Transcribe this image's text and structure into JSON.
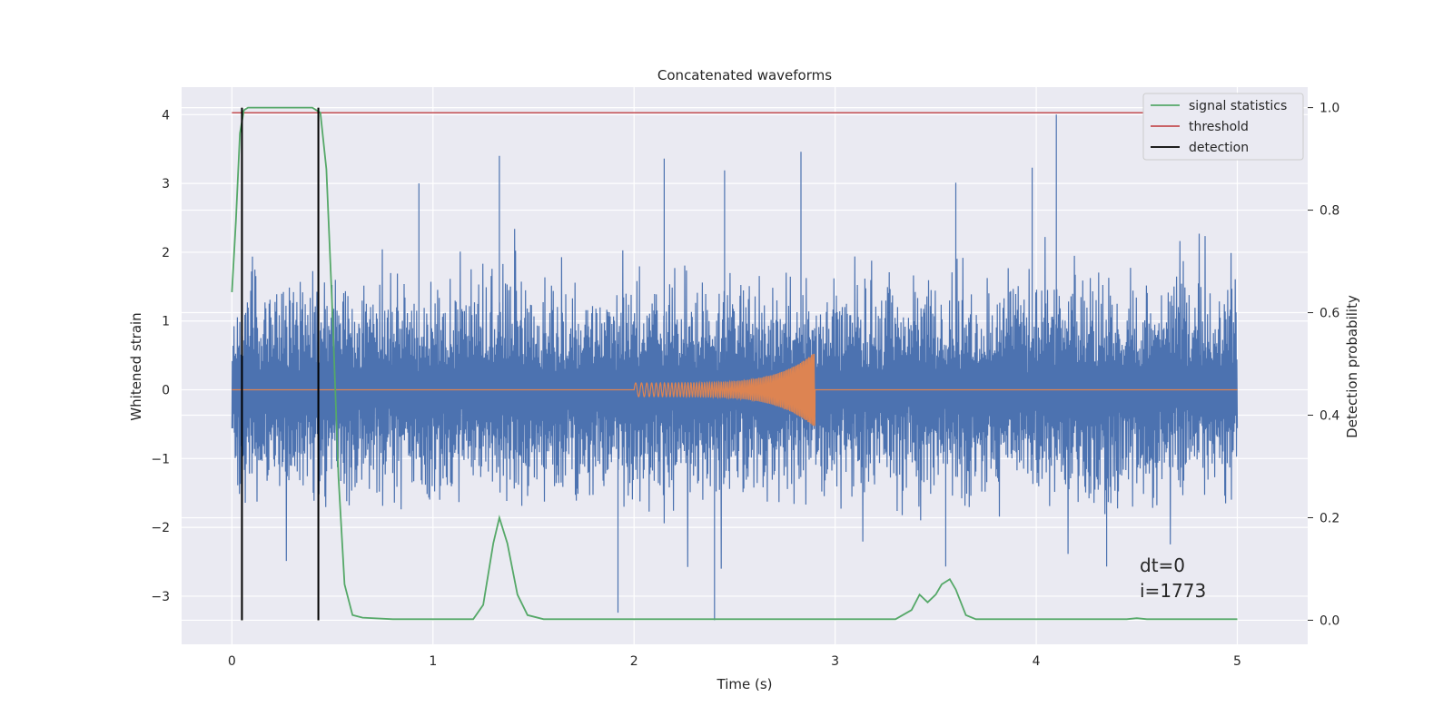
{
  "chart_data": {
    "type": "line",
    "title": "Concatenated waveforms",
    "xlabel": "Time (s)",
    "ylabel": "Whitened strain",
    "ylabel_right": "Detection probability",
    "xlim": [
      -0.25,
      5.35
    ],
    "ylim": [
      -3.7,
      4.4
    ],
    "ylim_right": [
      -0.047,
      1.04
    ],
    "x_ticks": [
      0,
      1,
      2,
      3,
      4,
      5
    ],
    "y_ticks": [
      -3,
      -2,
      -1,
      0,
      1,
      2,
      3,
      4
    ],
    "y_ticks_right": [
      0.0,
      0.2,
      0.4,
      0.6,
      0.8,
      1.0
    ],
    "x_tick_labels": [
      "0",
      "1",
      "2",
      "3",
      "4",
      "5"
    ],
    "y_tick_labels": [
      "−3",
      "−2",
      "−1",
      "0",
      "1",
      "2",
      "3",
      "4"
    ],
    "y_tick_labels_right": [
      "0.0",
      "0.2",
      "0.4",
      "0.6",
      "0.8",
      "1.0"
    ],
    "grid": true,
    "legend_position": "top-right",
    "colors": {
      "background": "#eaeaf2",
      "grid": "#ffffff",
      "noise": "#4c72b0",
      "waveform": "#dd8452",
      "signal_statistics": "#55a868",
      "threshold": "#c44e52",
      "detection": "#000000"
    },
    "series": [
      {
        "name": "signal statistics",
        "axis": "right",
        "x": [
          0.0,
          0.02,
          0.04,
          0.06,
          0.08,
          0.1,
          0.2,
          0.3,
          0.4,
          0.44,
          0.47,
          0.5,
          0.53,
          0.56,
          0.6,
          0.65,
          0.8,
          1.0,
          1.2,
          1.25,
          1.3,
          1.33,
          1.37,
          1.42,
          1.47,
          1.55,
          1.8,
          2.0,
          2.5,
          3.0,
          3.3,
          3.38,
          3.42,
          3.46,
          3.5,
          3.53,
          3.57,
          3.6,
          3.65,
          3.7,
          4.0,
          4.45,
          4.5,
          4.55,
          5.0
        ],
        "values": [
          0.64,
          0.78,
          0.95,
          0.995,
          1.0,
          1.0,
          1.0,
          1.0,
          1.0,
          0.99,
          0.88,
          0.6,
          0.28,
          0.07,
          0.01,
          0.005,
          0.002,
          0.002,
          0.002,
          0.03,
          0.15,
          0.2,
          0.15,
          0.05,
          0.01,
          0.002,
          0.002,
          0.002,
          0.002,
          0.002,
          0.002,
          0.02,
          0.05,
          0.035,
          0.05,
          0.07,
          0.08,
          0.06,
          0.01,
          0.002,
          0.002,
          0.002,
          0.004,
          0.002,
          0.002
        ]
      },
      {
        "name": "threshold",
        "axis": "right",
        "x": [
          0.0,
          5.0
        ],
        "values": [
          0.99,
          0.99
        ]
      },
      {
        "name": "detection",
        "axis": "right",
        "x": [
          0.05,
          0.43
        ],
        "range": [
          0.0,
          1.0
        ]
      },
      {
        "name": "",
        "axis": "left",
        "description_values": "whitened noise strain, roughly +/-2 envelope with spikes to about +/-3.5",
        "spikes": [
          [
            0.93,
            3.0
          ],
          [
            1.33,
            3.4
          ],
          [
            2.15,
            3.36
          ],
          [
            2.45,
            3.19
          ],
          [
            2.83,
            3.46
          ],
          [
            3.6,
            3.01
          ],
          [
            3.98,
            3.23
          ],
          [
            4.1,
            4.0
          ],
          [
            2.4,
            -3.35
          ],
          [
            1.92,
            -3.24
          ],
          [
            3.55,
            -2.57
          ],
          [
            4.35,
            -2.57
          ]
        ]
      },
      {
        "name": "",
        "axis": "left",
        "chirp": {
          "start": 2.0,
          "end": 2.9,
          "start_amplitude": 0.1,
          "peak_amplitude": 0.55
        }
      }
    ],
    "annotations": [
      "dt=0",
      "i=1773"
    ]
  }
}
